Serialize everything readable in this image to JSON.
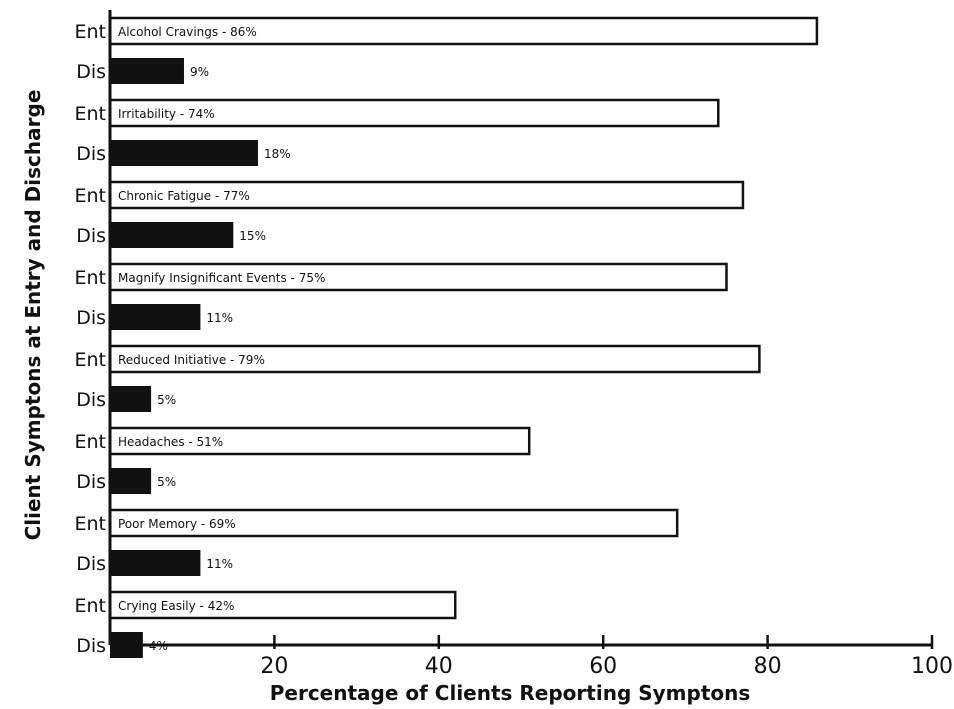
{
  "chart_data": {
    "type": "bar",
    "orientation": "horizontal",
    "xlabel": "Percentage of Clients Reporting Symptons",
    "ylabel": "Client Symptons at Entry and Discharge",
    "xlim": [
      0,
      100
    ],
    "xticks": [
      20,
      40,
      60,
      80,
      100
    ],
    "grid": false,
    "colors": {
      "entry": "#ffffff",
      "discharge": "#111111",
      "ink": "#111111"
    },
    "categories": [
      {
        "ent_label": "Alcohol Cravings - 86%",
        "ent": 86,
        "dis_label": "9%",
        "dis": 9
      },
      {
        "ent_label": "Irritability - 74%",
        "ent": 74,
        "dis_label": "18%",
        "dis": 18
      },
      {
        "ent_label": "Chronic Fatigue - 77%",
        "ent": 77,
        "dis_label": "15%",
        "dis": 15
      },
      {
        "ent_label": "Magnify Insignificant Events - 75%",
        "ent": 75,
        "dis_label": "11%",
        "dis": 11
      },
      {
        "ent_label": "Reduced Initiative - 79%",
        "ent": 79,
        "dis_label": "5%",
        "dis": 5
      },
      {
        "ent_label": "Headaches - 51%",
        "ent": 51,
        "dis_label": "5%",
        "dis": 5
      },
      {
        "ent_label": "Poor Memory - 69%",
        "ent": 69,
        "dis_label": "11%",
        "dis": 11
      },
      {
        "ent_label": "Crying Easily - 42%",
        "ent": 42,
        "dis_label": "4%",
        "dis": 4
      }
    ],
    "row_labels": {
      "entry": "Ent",
      "discharge": "Dis"
    }
  }
}
